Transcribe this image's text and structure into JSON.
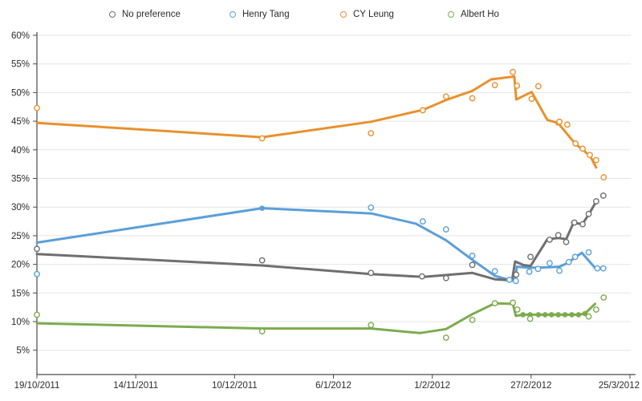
{
  "chart_data": {
    "type": "line",
    "title": "",
    "legend_position": "top",
    "grid": true,
    "x_axis": {
      "tick_labels": [
        "19/10/2011",
        "14/11/2011",
        "10/12/2011",
        "6/1/2012",
        "1/2/2012",
        "27/2/2012",
        "25/3/2012"
      ],
      "start_label": "19/10/2011",
      "end_label": "25/3/2012"
    },
    "y_axis": {
      "min": 5,
      "max": 60,
      "step": 5,
      "unit": "%",
      "tick_labels": [
        "5%",
        "10%",
        "15%",
        "20%",
        "25%",
        "30%",
        "35%",
        "40%",
        "45%",
        "50%",
        "55%",
        "60%"
      ]
    },
    "x_unit": "days since 19/10/2011",
    "series": [
      {
        "name": "No preference",
        "color": "#6F6F6F",
        "trend": [
          [
            0,
            21.8
          ],
          [
            60,
            19.8
          ],
          [
            89,
            18.3
          ],
          [
            103,
            17.8
          ],
          [
            116,
            18.5
          ],
          [
            122,
            17.4
          ],
          [
            126.6,
            17.2
          ],
          [
            127.4,
            20.5
          ],
          [
            129.5,
            19.9
          ],
          [
            131.5,
            19.7
          ],
          [
            136,
            24.4
          ],
          [
            139,
            24.6
          ],
          [
            141,
            24.4
          ],
          [
            143,
            27.3
          ],
          [
            145.3,
            27.0
          ],
          [
            147,
            28.7
          ],
          [
            149.3,
            31.3
          ]
        ],
        "points": [
          [
            0,
            22.7
          ],
          [
            60,
            20.7
          ],
          [
            89,
            18.5
          ],
          [
            102.6,
            17.9
          ],
          [
            109,
            17.6
          ],
          [
            116,
            19.9
          ],
          [
            127.7,
            18.2
          ],
          [
            131.5,
            21.3
          ],
          [
            136.6,
            24.3
          ],
          [
            138.9,
            25.1
          ],
          [
            141,
            23.9
          ],
          [
            143.2,
            27.3
          ],
          [
            145.4,
            27.0
          ],
          [
            147,
            28.8
          ],
          [
            149,
            31.0
          ],
          [
            150.9,
            32.0
          ]
        ],
        "markers": [
          [
            143,
            27.3
          ]
        ]
      },
      {
        "name": "Henry Tang",
        "color": "#5B9FD8",
        "trend": [
          [
            0,
            23.8
          ],
          [
            60,
            29.8
          ],
          [
            89,
            28.9
          ],
          [
            101,
            27.1
          ],
          [
            109,
            24.2
          ],
          [
            116,
            20.8
          ],
          [
            122,
            18.0
          ],
          [
            125.8,
            17.3
          ],
          [
            127.3,
            17.1
          ],
          [
            127.9,
            19.6
          ],
          [
            131,
            19.4
          ],
          [
            136.5,
            19.5
          ],
          [
            139.2,
            19.6
          ],
          [
            141.6,
            20.3
          ],
          [
            143.5,
            21.3
          ],
          [
            145.2,
            22.0
          ],
          [
            148.8,
            19.3
          ],
          [
            150.3,
            19.3
          ]
        ],
        "points": [
          [
            0,
            18.3
          ],
          [
            89,
            29.9
          ],
          [
            102.8,
            27.5
          ],
          [
            109,
            26.1
          ],
          [
            116,
            21.5
          ],
          [
            122,
            18.8
          ],
          [
            125.9,
            17.3
          ],
          [
            127.6,
            17.1
          ],
          [
            131.2,
            18.7
          ],
          [
            133.5,
            19.2
          ],
          [
            136.6,
            20.2
          ],
          [
            139.2,
            18.9
          ],
          [
            141.7,
            20.4
          ],
          [
            143.4,
            21.3
          ],
          [
            147,
            22.1
          ],
          [
            149.3,
            19.3
          ],
          [
            150.9,
            19.3
          ]
        ],
        "markers": [
          [
            60,
            29.8
          ]
        ]
      },
      {
        "name": "CY Leung",
        "color": "#E8912D",
        "trend": [
          [
            0,
            44.7
          ],
          [
            60,
            42.2
          ],
          [
            89,
            44.9
          ],
          [
            103,
            47.0
          ],
          [
            109,
            48.7
          ],
          [
            116,
            50.3
          ],
          [
            121,
            52.3
          ],
          [
            127.2,
            52.8
          ],
          [
            127.7,
            48.8
          ],
          [
            131.8,
            50.1
          ],
          [
            136,
            45.2
          ],
          [
            138.8,
            44.7
          ],
          [
            143.5,
            41.0
          ],
          [
            145.5,
            40.0
          ],
          [
            147.5,
            38.8
          ],
          [
            149,
            36.9
          ]
        ],
        "points": [
          [
            0,
            47.3
          ],
          [
            60,
            42.0
          ],
          [
            89,
            42.9
          ],
          [
            102.8,
            46.9
          ],
          [
            109,
            49.3
          ],
          [
            116,
            49.0
          ],
          [
            122,
            51.3
          ],
          [
            126.8,
            53.6
          ],
          [
            127.9,
            51.2
          ],
          [
            131.8,
            48.9
          ],
          [
            133.6,
            51.1
          ],
          [
            139.2,
            44.9
          ],
          [
            141.3,
            44.4
          ],
          [
            143.5,
            41.1
          ],
          [
            145.4,
            40.2
          ],
          [
            147.3,
            39.1
          ],
          [
            149,
            38.2
          ],
          [
            151,
            35.2
          ]
        ],
        "markers": [
          [
            138.8,
            44.7
          ]
        ]
      },
      {
        "name": "Albert Ho",
        "color": "#7CAB4E",
        "trend": [
          [
            0,
            9.7
          ],
          [
            60,
            8.8
          ],
          [
            89,
            8.8
          ],
          [
            102,
            8.0
          ],
          [
            109,
            8.7
          ],
          [
            116,
            11.3
          ],
          [
            122,
            13.2
          ],
          [
            126.8,
            13.1
          ],
          [
            127.6,
            11.0
          ],
          [
            129.5,
            11.2
          ],
          [
            133.6,
            11.2
          ],
          [
            137.1,
            11.2
          ],
          [
            140.7,
            11.2
          ],
          [
            144.3,
            11.2
          ],
          [
            146,
            11.4
          ],
          [
            148.7,
            13.1
          ]
        ],
        "points": [
          [
            0,
            11.2
          ],
          [
            60,
            8.3
          ],
          [
            89,
            9.4
          ],
          [
            109,
            7.2
          ],
          [
            116,
            10.3
          ],
          [
            122,
            13.2
          ],
          [
            126.8,
            13.3
          ],
          [
            128,
            12.1
          ],
          [
            131.4,
            10.5
          ],
          [
            147,
            10.9
          ],
          [
            149,
            12.1
          ],
          [
            151,
            14.2
          ]
        ],
        "markers": [
          [
            129.5,
            11.2
          ],
          [
            131.4,
            11.2
          ],
          [
            133.6,
            11.2
          ],
          [
            135.4,
            11.2
          ],
          [
            137.1,
            11.2
          ],
          [
            138.9,
            11.2
          ],
          [
            140.7,
            11.2
          ],
          [
            142.5,
            11.2
          ],
          [
            144.3,
            11.2
          ],
          [
            146,
            11.4
          ]
        ]
      }
    ]
  }
}
